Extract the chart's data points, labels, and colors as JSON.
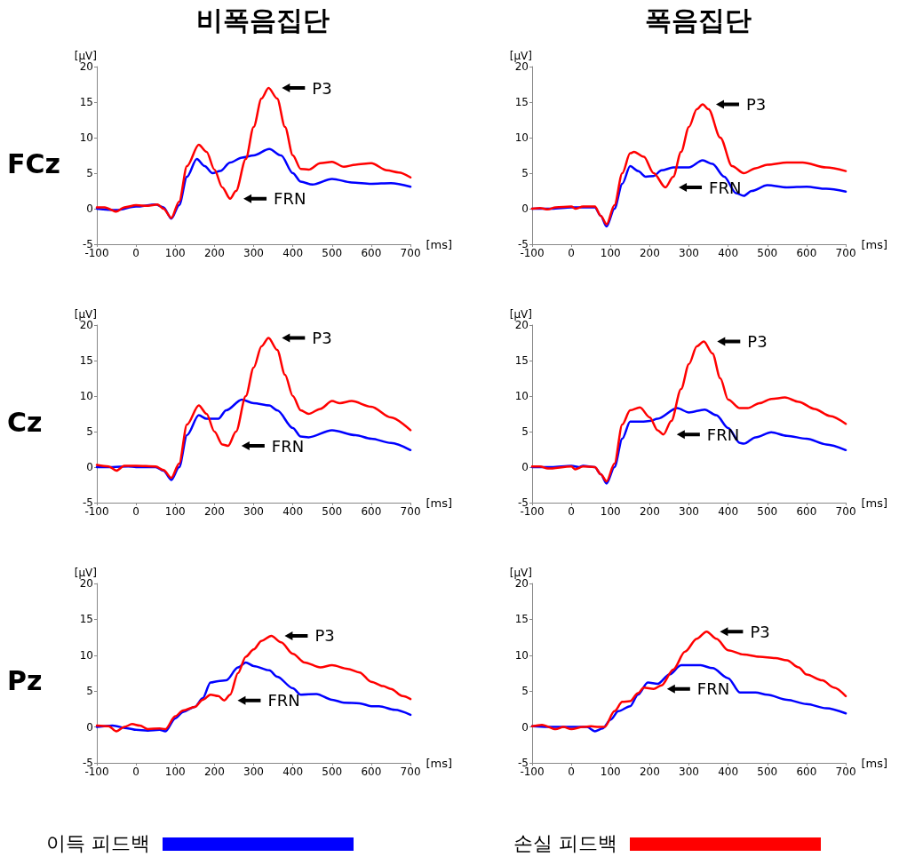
{
  "chart_data": [
    {
      "type": "line",
      "title": "비폭음집단",
      "ylabel": "[μV]",
      "xlabel": "[ms]",
      "xlim": [
        -100,
        700
      ],
      "xticks": [
        -100,
        0,
        100,
        200,
        300,
        400,
        500,
        600,
        700
      ],
      "ylim": [
        -5,
        20
      ],
      "yticks": [
        -5,
        0,
        5,
        10,
        15,
        20
      ],
      "grid": false,
      "legend": false,
      "marker": "none",
      "line_style": "solid",
      "annotations": [
        "FCz",
        {
          "text": "P3",
          "x": 338,
          "y": 17
        },
        {
          "text": "FRN",
          "x": 240,
          "y": 1.4
        }
      ],
      "series": [
        {
          "color": "#0000ff",
          "x": [
            -100,
            -50,
            0,
            50,
            70,
            90,
            110,
            130,
            155,
            175,
            195,
            215,
            240,
            270,
            300,
            340,
            370,
            400,
            420,
            450,
            500,
            550,
            600,
            650,
            700
          ],
          "values": [
            0,
            -0.2,
            0.3,
            0.6,
            0.2,
            -1.4,
            0.5,
            4.5,
            7,
            6,
            5,
            5.3,
            6.5,
            7.2,
            7.5,
            8.4,
            7.5,
            5,
            3.8,
            3.4,
            4.2,
            3.7,
            3.5,
            3.6,
            3.1
          ]
        },
        {
          "color": "#ff0000",
          "x": [
            -100,
            -80,
            -50,
            -30,
            0,
            30,
            55,
            70,
            90,
            110,
            130,
            160,
            180,
            200,
            220,
            240,
            255,
            280,
            300,
            320,
            338,
            360,
            380,
            400,
            420,
            440,
            470,
            500,
            530,
            560,
            600,
            640,
            670,
            700
          ],
          "values": [
            0.2,
            0.2,
            -0.4,
            0.2,
            0.5,
            0.4,
            0.6,
            0,
            -1.3,
            1,
            6,
            9,
            8,
            5.5,
            3,
            1.4,
            2.5,
            7,
            11.5,
            15.5,
            17,
            15.5,
            11.5,
            7.5,
            5.6,
            5.5,
            6.4,
            6.6,
            5.9,
            6.2,
            6.4,
            5.4,
            5.1,
            4.4
          ]
        }
      ]
    },
    {
      "type": "line",
      "title": "폭음집단",
      "ylabel": "[μV]",
      "xlabel": "[ms]",
      "xlim": [
        -100,
        700
      ],
      "xticks": [
        -100,
        0,
        100,
        200,
        300,
        400,
        500,
        600,
        700
      ],
      "ylim": [
        -5,
        20
      ],
      "yticks": [
        -5,
        0,
        5,
        10,
        15,
        20
      ],
      "grid": false,
      "legend": false,
      "marker": "none",
      "line_style": "solid",
      "annotations": [
        {
          "text": "P3",
          "x": 335,
          "y": 14.7
        },
        {
          "text": "FRN",
          "x": 240,
          "y": 3
        }
      ],
      "series": [
        {
          "color": "#0000ff",
          "x": [
            -100,
            -50,
            0,
            30,
            60,
            75,
            90,
            110,
            130,
            150,
            170,
            190,
            210,
            230,
            260,
            300,
            335,
            360,
            390,
            420,
            440,
            460,
            500,
            550,
            600,
            650,
            700
          ],
          "values": [
            0,
            0,
            0.2,
            0.2,
            0.2,
            -1,
            -2.5,
            0,
            3.5,
            6,
            5.3,
            4.5,
            4.6,
            5.4,
            5.8,
            5.8,
            6.8,
            6.3,
            4.5,
            2.2,
            1.8,
            2.5,
            3.3,
            3,
            3.1,
            2.8,
            2.4
          ]
        },
        {
          "color": "#ff0000",
          "x": [
            -100,
            -80,
            -60,
            -40,
            0,
            10,
            30,
            60,
            75,
            90,
            110,
            130,
            150,
            160,
            185,
            210,
            240,
            260,
            280,
            300,
            320,
            335,
            350,
            380,
            410,
            440,
            470,
            500,
            550,
            590,
            650,
            700
          ],
          "values": [
            0,
            0.1,
            -0.1,
            0.2,
            0.3,
            0,
            0.3,
            0.3,
            -1,
            -2.2,
            0.5,
            5,
            7.8,
            8,
            7.3,
            5,
            3,
            4.5,
            8,
            11.5,
            14,
            14.7,
            14,
            10,
            6,
            5,
            5.7,
            6.2,
            6.5,
            6.5,
            5.8,
            5.3
          ]
        }
      ]
    },
    {
      "type": "line",
      "ylabel": "[μV]",
      "xlabel": "[ms]",
      "xlim": [
        -100,
        700
      ],
      "xticks": [
        -100,
        0,
        100,
        200,
        300,
        400,
        500,
        600,
        700
      ],
      "ylim": [
        -5,
        20
      ],
      "yticks": [
        -5,
        0,
        5,
        10,
        15,
        20
      ],
      "grid": false,
      "legend": false,
      "marker": "none",
      "line_style": "solid",
      "annotations": [
        "Cz",
        {
          "text": "P3",
          "x": 338,
          "y": 18.2
        },
        {
          "text": "FRN",
          "x": 235,
          "y": 3
        }
      ],
      "series": [
        {
          "color": "#0000ff",
          "x": [
            -100,
            -60,
            -20,
            0,
            50,
            70,
            90,
            110,
            130,
            160,
            180,
            210,
            230,
            270,
            300,
            340,
            360,
            400,
            420,
            440,
            500,
            560,
            600,
            650,
            700
          ],
          "values": [
            0,
            0,
            0.1,
            0,
            0,
            -0.5,
            -1.8,
            0,
            4.5,
            7.3,
            6.8,
            6.8,
            8,
            9.5,
            9,
            8.7,
            8,
            5.5,
            4.3,
            4.2,
            5.2,
            4.5,
            4,
            3.4,
            2.4
          ]
        },
        {
          "color": "#ff0000",
          "x": [
            -100,
            -70,
            -50,
            -30,
            0,
            50,
            70,
            90,
            110,
            130,
            160,
            180,
            200,
            220,
            235,
            255,
            280,
            300,
            320,
            338,
            360,
            380,
            400,
            420,
            440,
            470,
            500,
            520,
            550,
            600,
            650,
            700
          ],
          "values": [
            0.3,
            0.1,
            -0.5,
            0.2,
            0.2,
            0.1,
            -0.4,
            -1.5,
            0.5,
            6,
            8.7,
            7.5,
            5,
            3.2,
            3,
            5,
            10,
            14,
            17,
            18.2,
            16.5,
            13,
            10,
            8,
            7.5,
            8.2,
            9.3,
            9,
            9.3,
            8.5,
            7,
            5.2
          ]
        }
      ]
    },
    {
      "type": "line",
      "ylabel": "[μV]",
      "xlabel": "[ms]",
      "xlim": [
        -100,
        700
      ],
      "xticks": [
        -100,
        0,
        100,
        200,
        300,
        400,
        500,
        600,
        700
      ],
      "ylim": [
        -5,
        20
      ],
      "yticks": [
        -5,
        0,
        5,
        10,
        15,
        20
      ],
      "grid": false,
      "legend": false,
      "marker": "none",
      "line_style": "solid",
      "annotations": [
        {
          "text": "P3",
          "x": 338,
          "y": 17.7
        },
        {
          "text": "FRN",
          "x": 235,
          "y": 4.6
        }
      ],
      "series": [
        {
          "color": "#0000ff",
          "x": [
            -100,
            -50,
            0,
            20,
            30,
            60,
            75,
            90,
            110,
            130,
            150,
            180,
            200,
            220,
            270,
            300,
            340,
            370,
            400,
            430,
            440,
            470,
            510,
            550,
            600,
            650,
            700
          ],
          "values": [
            0,
            0,
            0.2,
            0,
            0.2,
            0,
            -1,
            -2.3,
            0,
            4,
            6.4,
            6.4,
            6.5,
            6.8,
            8.3,
            7.7,
            8.1,
            7.3,
            5.5,
            3.4,
            3.3,
            4.2,
            4.9,
            4.4,
            4,
            3.2,
            2.4
          ]
        },
        {
          "color": "#ff0000",
          "x": [
            -100,
            -80,
            -60,
            0,
            10,
            30,
            60,
            75,
            90,
            110,
            130,
            150,
            175,
            200,
            220,
            235,
            255,
            280,
            300,
            320,
            338,
            360,
            380,
            400,
            430,
            450,
            480,
            510,
            545,
            580,
            620,
            660,
            700
          ],
          "values": [
            0.1,
            0.1,
            -0.2,
            0.1,
            -0.3,
            0.1,
            0,
            -1,
            -2,
            0.5,
            6,
            8,
            8.4,
            7,
            5.2,
            4.6,
            6.5,
            11,
            14.5,
            17,
            17.7,
            16,
            12.5,
            9.5,
            8.3,
            8.3,
            9,
            9.6,
            9.8,
            9.2,
            8.2,
            7.2,
            6.1
          ]
        }
      ]
    },
    {
      "type": "line",
      "ylabel": "[μV]",
      "xlabel": "[ms]",
      "xlim": [
        -100,
        700
      ],
      "xticks": [
        -100,
        0,
        100,
        200,
        300,
        400,
        500,
        600,
        700
      ],
      "ylim": [
        -5,
        20
      ],
      "yticks": [
        -5,
        0,
        5,
        10,
        15,
        20
      ],
      "grid": false,
      "legend": "bottom",
      "marker": "none",
      "line_style": "solid",
      "annotations": [
        "Pz",
        {
          "text": "P3",
          "x": 345,
          "y": 12.7
        },
        {
          "text": "FRN",
          "x": 225,
          "y": 3.7
        }
      ],
      "series": [
        {
          "name": "이득 피드백",
          "color": "#0000ff",
          "x": [
            -100,
            -60,
            -20,
            0,
            30,
            60,
            75,
            100,
            120,
            150,
            170,
            190,
            210,
            230,
            260,
            280,
            300,
            340,
            360,
            400,
            420,
            460,
            500,
            530,
            570,
            600,
            620,
            660,
            700
          ],
          "values": [
            0,
            0.2,
            -0.2,
            -0.4,
            -0.5,
            -0.4,
            -0.6,
            1.2,
            2.1,
            2.8,
            4,
            6.2,
            6.4,
            6.5,
            8.3,
            9,
            8.5,
            7.9,
            7,
            5.4,
            4.5,
            4.6,
            3.8,
            3.4,
            3.3,
            2.9,
            2.9,
            2.4,
            1.7
          ]
        },
        {
          "color": "#ff0000",
          "x": [
            -100,
            -70,
            -50,
            -30,
            -10,
            10,
            30,
            60,
            75,
            100,
            120,
            150,
            170,
            190,
            210,
            225,
            240,
            260,
            280,
            300,
            320,
            345,
            370,
            400,
            430,
            470,
            500,
            540,
            570,
            600,
            630,
            650,
            680,
            700
          ],
          "values": [
            0.2,
            0.1,
            -0.6,
            0,
            0.4,
            0.2,
            -0.3,
            -0.2,
            -0.3,
            1.5,
            2.3,
            2.8,
            3.8,
            4.5,
            4.3,
            3.7,
            4.5,
            7.5,
            9.8,
            10.8,
            12,
            12.7,
            11.8,
            10.2,
            9,
            8.3,
            8.6,
            8.1,
            7.6,
            6.3,
            5.7,
            5.3,
            4.3,
            3.9
          ]
        }
      ]
    },
    {
      "type": "line",
      "ylabel": "[μV]",
      "xlabel": "[ms]",
      "xlim": [
        -100,
        700
      ],
      "xticks": [
        -100,
        0,
        100,
        200,
        300,
        400,
        500,
        600,
        700
      ],
      "ylim": [
        -5,
        20
      ],
      "yticks": [
        -5,
        0,
        5,
        10,
        15,
        20
      ],
      "grid": false,
      "legend": "bottom",
      "marker": "none",
      "line_style": "solid",
      "annotations": [
        {
          "text": "P3",
          "x": 345,
          "y": 13.3
        },
        {
          "text": "FRN",
          "x": 210,
          "y": 5.3
        }
      ],
      "series": [
        {
          "color": "#0000ff",
          "x": [
            -100,
            -60,
            0,
            40,
            60,
            80,
            100,
            120,
            150,
            170,
            195,
            220,
            250,
            280,
            330,
            360,
            400,
            430,
            470,
            500,
            550,
            600,
            650,
            700
          ],
          "values": [
            0.1,
            0,
            0,
            0,
            -0.6,
            -0.2,
            1,
            2.2,
            2.9,
            4.5,
            6.2,
            6,
            7.3,
            8.6,
            8.6,
            8.2,
            6.8,
            4.8,
            4.8,
            4.5,
            3.8,
            3.2,
            2.6,
            1.9
          ]
        },
        {
          "name": "손실 피드백",
          "color": "#ff0000",
          "x": [
            -100,
            -75,
            -40,
            -20,
            0,
            30,
            50,
            70,
            85,
            110,
            130,
            150,
            170,
            185,
            210,
            230,
            260,
            290,
            320,
            345,
            370,
            400,
            440,
            480,
            520,
            550,
            580,
            600,
            640,
            670,
            700
          ],
          "values": [
            0.1,
            0.3,
            -0.3,
            0,
            -0.3,
            0,
            0.1,
            0,
            0,
            2.2,
            3.5,
            3.6,
            4.7,
            5.5,
            5.3,
            5.8,
            8,
            10.5,
            12.3,
            13.3,
            12.3,
            10.7,
            10.1,
            9.8,
            9.6,
            9.3,
            8.3,
            7.3,
            6.5,
            5.5,
            4.3
          ]
        }
      ]
    }
  ]
}
